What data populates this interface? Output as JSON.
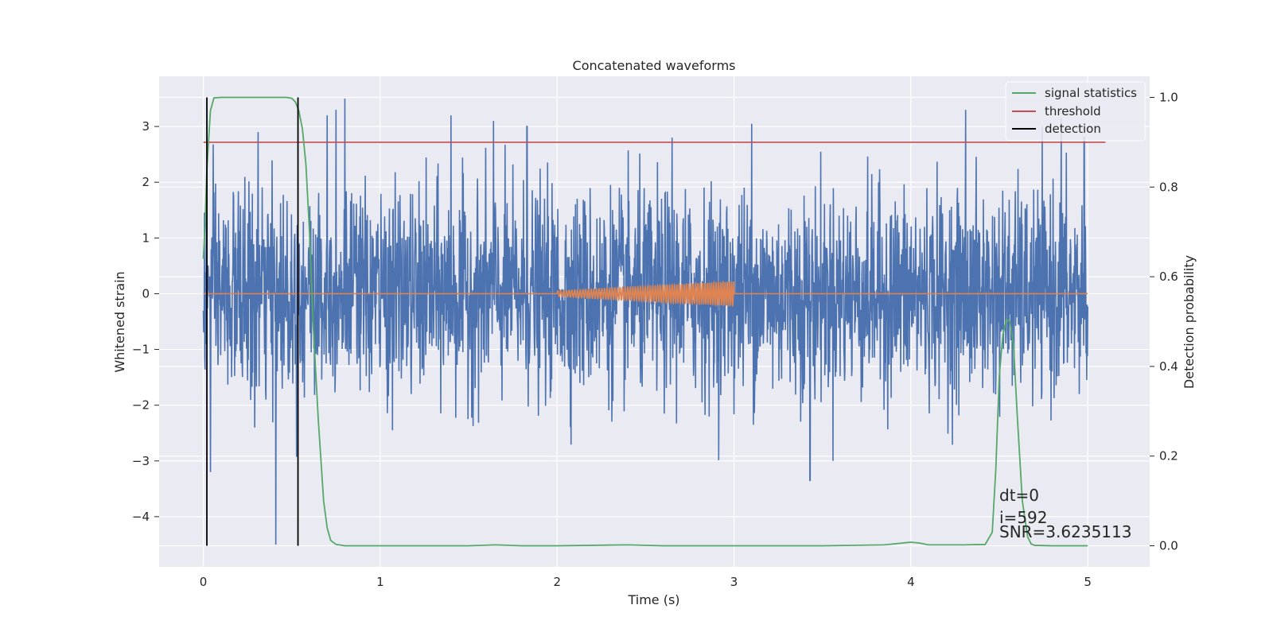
{
  "chart_data": {
    "type": "line",
    "title": "Concatenated waveforms",
    "xlabel": "Time (s)",
    "ylabel": "Whitened strain",
    "y2label": "Detection probability",
    "xlim": [
      -0.25,
      5.35
    ],
    "ylim": [
      -4.9,
      3.9
    ],
    "y2lim": [
      -0.047,
      1.047
    ],
    "x_ticks": [
      0,
      1,
      2,
      3,
      4,
      5
    ],
    "y_ticks": [
      3,
      2,
      1,
      0,
      -1,
      -2,
      -3,
      -4
    ],
    "y2_ticks": [
      1.0,
      0.8,
      0.6,
      0.4,
      0.2,
      0.0
    ],
    "grid": true,
    "legend_position": "top-right",
    "colors": {
      "strain": "#4c72b0",
      "template": "#dd8452",
      "signal_statistics": "#55a868",
      "threshold": "#c44e52",
      "detection": "#000000",
      "plot_bg": "#eaeaf2",
      "grid": "#ffffff"
    },
    "series": [
      {
        "name": "",
        "axis": "left",
        "kind": "noise",
        "x_range": [
          0,
          5
        ],
        "sigma": 0.9,
        "spikes": [
          [
            0.04,
            -3.2
          ],
          [
            0.41,
            -4.5
          ],
          [
            0.29,
            -2.4
          ],
          [
            0.75,
            3.3
          ],
          [
            0.8,
            3.5
          ],
          [
            1.4,
            3.2
          ],
          [
            1.64,
            3.1
          ],
          [
            2.65,
            2.8
          ],
          [
            3.1,
            3.05
          ],
          [
            3.43,
            -3.35
          ],
          [
            4.31,
            3.3
          ],
          [
            4.85,
            3.15
          ],
          [
            4.98,
            2.8
          ],
          [
            0.31,
            2.9
          ],
          [
            0.7,
            3.2
          ],
          [
            1.83,
            3.0
          ]
        ]
      },
      {
        "name": "",
        "axis": "left",
        "kind": "chirp",
        "x_range": [
          2,
          3
        ],
        "amp_range": [
          0.05,
          0.22
        ],
        "cycles": 62
      },
      {
        "name": "signal statistics",
        "axis": "right",
        "x": [
          0,
          0.01,
          0.02,
          0.04,
          0.06,
          0.1,
          0.2,
          0.3,
          0.4,
          0.47,
          0.5,
          0.52,
          0.54,
          0.56,
          0.58,
          0.6,
          0.62,
          0.65,
          0.68,
          0.7,
          0.72,
          0.75,
          0.8,
          1.0,
          1.5,
          1.65,
          1.8,
          2.0,
          2.4,
          2.6,
          3.0,
          3.5,
          3.85,
          3.95,
          4.0,
          4.05,
          4.1,
          4.3,
          4.42,
          4.46,
          4.48,
          4.5,
          4.52,
          4.54,
          4.56,
          4.58,
          4.6,
          4.63,
          4.66,
          4.68,
          4.7,
          4.8,
          5.0
        ],
        "y": [
          0.64,
          0.72,
          0.84,
          0.97,
          0.999,
          1.0,
          1.0,
          1.0,
          1.0,
          1.0,
          0.998,
          0.99,
          0.97,
          0.93,
          0.85,
          0.7,
          0.5,
          0.28,
          0.1,
          0.04,
          0.012,
          0.003,
          0.0,
          0.0,
          0.0,
          0.002,
          0.0,
          0.0,
          0.002,
          0.0,
          0.0,
          0.0,
          0.002,
          0.006,
          0.008,
          0.006,
          0.002,
          0.002,
          0.003,
          0.03,
          0.17,
          0.38,
          0.47,
          0.505,
          0.5,
          0.45,
          0.3,
          0.1,
          0.02,
          0.004,
          0.001,
          0.0,
          0.0
        ]
      },
      {
        "name": "threshold",
        "axis": "right",
        "x": [
          0,
          5.1
        ],
        "y": [
          0.9,
          0.9
        ]
      },
      {
        "name": "detection",
        "axis": "right",
        "kind": "vlines",
        "x": [
          0.02,
          0.535
        ],
        "y_range": [
          0.0,
          1.0
        ]
      }
    ],
    "annotations": [
      "dt=0",
      "i=592",
      "SNR=3.6235113"
    ]
  }
}
